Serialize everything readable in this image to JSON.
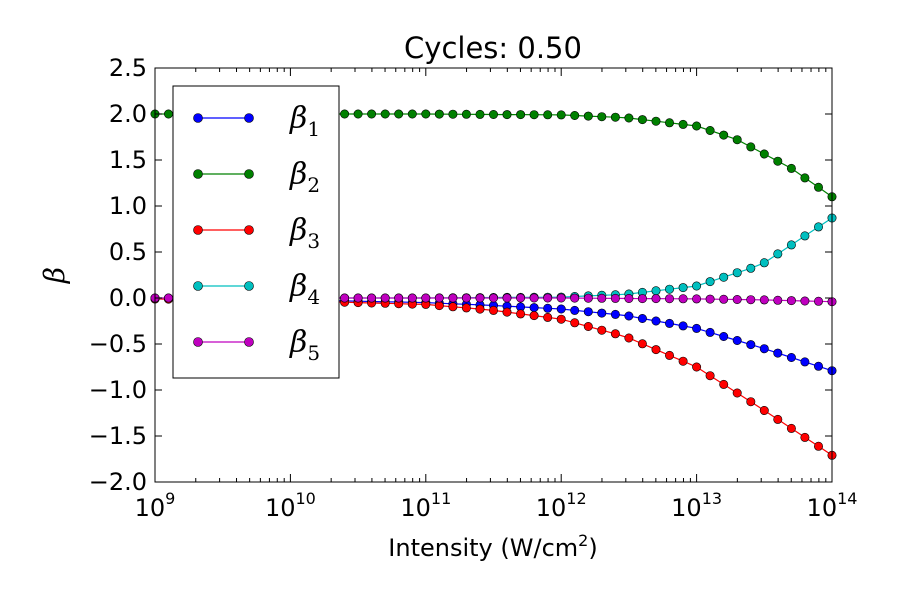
{
  "chart_data": {
    "type": "line",
    "title": "Cycles: 0.50",
    "xlabel": "Intensity (W/cm",
    "xlabel_sup": "2",
    "xlabel_close": ")",
    "ylabel": "β",
    "xscale": "log",
    "xlim": [
      1000000000.0,
      100000000000000.0
    ],
    "ylim": [
      -2.0,
      2.5
    ],
    "grid": false,
    "legend_position": "upper-left",
    "x_tick_labels": [
      {
        "base": "10",
        "exp": "9"
      },
      {
        "base": "10",
        "exp": "10"
      },
      {
        "base": "10",
        "exp": "11"
      },
      {
        "base": "10",
        "exp": "12"
      },
      {
        "base": "10",
        "exp": "13"
      },
      {
        "base": "10",
        "exp": "14"
      }
    ],
    "x_tick_values": [
      1000000000.0,
      10000000000.0,
      100000000000.0,
      1000000000000.0,
      10000000000000.0,
      100000000000000.0
    ],
    "y_ticks": [
      2.5,
      2.0,
      1.5,
      1.0,
      0.5,
      0.0,
      -0.5,
      -1.0,
      -1.5,
      -2.0
    ],
    "y_tick_labels": [
      "2.5",
      "2.0",
      "1.5",
      "1.0",
      "0.5",
      "0.0",
      "−0.5",
      "−1.0",
      "−1.5",
      "−2.0"
    ],
    "series": [
      {
        "name": "β",
        "subscript": "1",
        "color": "#0000ff",
        "x": [
          1000000000.0,
          10000000000.0,
          100000000000.0,
          300000000000.0,
          1000000000000.0,
          3000000000000.0,
          10000000000000.0,
          30000000000000.0,
          100000000000000.0
        ],
        "y": [
          -0.01,
          -0.02,
          -0.05,
          -0.08,
          -0.12,
          -0.19,
          -0.33,
          -0.54,
          -0.79
        ]
      },
      {
        "name": "β",
        "subscript": "2",
        "color": "#008000",
        "x": [
          1000000000.0,
          10000000000.0,
          100000000000.0,
          1000000000000.0,
          3000000000000.0,
          10000000000000.0,
          20000000000000.0,
          50000000000000.0,
          100000000000000.0
        ],
        "y": [
          2.0,
          2.0,
          2.0,
          1.99,
          1.96,
          1.87,
          1.72,
          1.41,
          1.1
        ]
      },
      {
        "name": "β",
        "subscript": "3",
        "color": "#ff0000",
        "x": [
          1000000000.0,
          10000000000.0,
          100000000000.0,
          300000000000.0,
          1000000000000.0,
          3000000000000.0,
          10000000000000.0,
          30000000000000.0,
          100000000000000.0
        ],
        "y": [
          -0.01,
          -0.03,
          -0.07,
          -0.13,
          -0.23,
          -0.42,
          -0.75,
          -1.2,
          -1.71
        ]
      },
      {
        "name": "β",
        "subscript": "4",
        "color": "#00bfbf",
        "x": [
          1000000000.0,
          10000000000.0,
          100000000000.0,
          1000000000000.0,
          3000000000000.0,
          10000000000000.0,
          30000000000000.0,
          100000000000000.0
        ],
        "y": [
          0.0,
          0.0,
          0.0,
          0.01,
          0.04,
          0.13,
          0.36,
          0.87
        ]
      },
      {
        "name": "β",
        "subscript": "5",
        "color": "#bf00bf",
        "x": [
          1000000000.0,
          100000000000.0,
          1000000000000.0,
          10000000000000.0,
          30000000000000.0,
          100000000000000.0
        ],
        "y": [
          0.0,
          0.0,
          0.0,
          -0.01,
          -0.02,
          -0.04
        ]
      }
    ]
  }
}
